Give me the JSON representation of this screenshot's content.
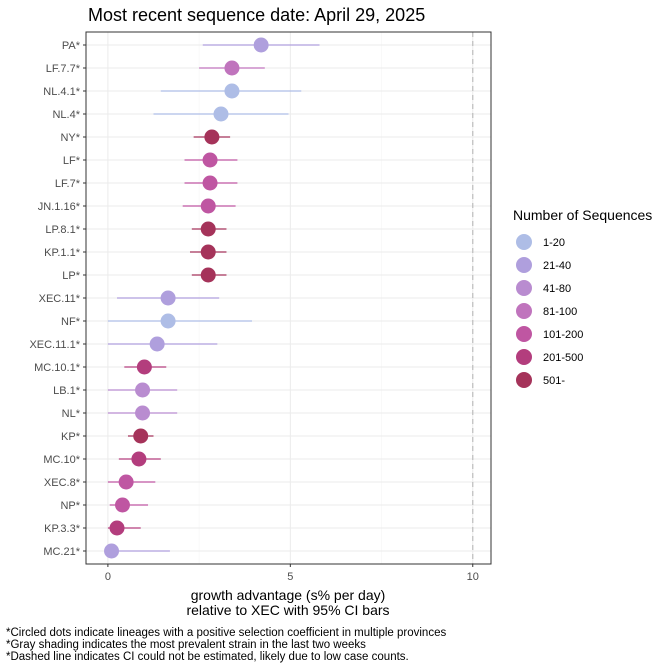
{
  "chart_data": {
    "type": "scatter",
    "title": "Most recent sequence date: April 29, 2025",
    "xlabel": [
      "growth advantage (s% per day)",
      "relative to  XEC  with 95% CI bars"
    ],
    "ylabel": "",
    "xlim": [
      -0.6,
      10.5
    ],
    "x_ticks": [
      0,
      5,
      10
    ],
    "x_tick_labels": [
      "0",
      "5",
      "10"
    ],
    "reference_line": {
      "x": 10,
      "style": "dashed",
      "color": "#bdbdbd"
    },
    "grid": true,
    "legend": {
      "title": "Number of Sequences",
      "placement": "right",
      "entries": [
        {
          "label": "1-20",
          "color": "#aebde6"
        },
        {
          "label": "21-40",
          "color": "#af9fdd"
        },
        {
          "label": "41-80",
          "color": "#b98cd0"
        },
        {
          "label": "81-100",
          "color": "#c074bd"
        },
        {
          "label": "101-200",
          "color": "#bf56a2"
        },
        {
          "label": "201-500",
          "color": "#b33d7d"
        },
        {
          "label": "501-",
          "color": "#a5335a"
        }
      ]
    },
    "points": [
      {
        "lineage": "PA*",
        "x": 4.2,
        "lo": 2.6,
        "hi": 5.8,
        "group": "21-40"
      },
      {
        "lineage": "LF.7.7*",
        "x": 3.4,
        "lo": 2.5,
        "hi": 4.3,
        "group": "81-100"
      },
      {
        "lineage": "NL.4.1*",
        "x": 3.4,
        "lo": 1.45,
        "hi": 5.3,
        "group": "1-20"
      },
      {
        "lineage": "NL.4*",
        "x": 3.1,
        "lo": 1.25,
        "hi": 4.95,
        "group": "1-20"
      },
      {
        "lineage": "NY*",
        "x": 2.85,
        "lo": 2.35,
        "hi": 3.35,
        "group": "501-"
      },
      {
        "lineage": "LF*",
        "x": 2.8,
        "lo": 2.1,
        "hi": 3.55,
        "group": "101-200"
      },
      {
        "lineage": "LF.7*",
        "x": 2.8,
        "lo": 2.1,
        "hi": 3.55,
        "group": "101-200"
      },
      {
        "lineage": "JN.1.16*",
        "x": 2.75,
        "lo": 2.05,
        "hi": 3.5,
        "group": "101-200"
      },
      {
        "lineage": "LP.8.1*",
        "x": 2.75,
        "lo": 2.3,
        "hi": 3.25,
        "group": "501-"
      },
      {
        "lineage": "KP.1.1*",
        "x": 2.75,
        "lo": 2.25,
        "hi": 3.25,
        "group": "501-"
      },
      {
        "lineage": "LP*",
        "x": 2.75,
        "lo": 2.3,
        "hi": 3.25,
        "group": "501-"
      },
      {
        "lineage": "XEC.11*",
        "x": 1.65,
        "lo": 0.25,
        "hi": 3.05,
        "group": "21-40"
      },
      {
        "lineage": "NF*",
        "x": 1.65,
        "lo": 0.0,
        "hi": 3.95,
        "group": "1-20"
      },
      {
        "lineage": "XEC.11.1*",
        "x": 1.35,
        "lo": 0.0,
        "hi": 3.0,
        "group": "21-40"
      },
      {
        "lineage": "MC.10.1*",
        "x": 1.0,
        "lo": 0.45,
        "hi": 1.6,
        "group": "201-500"
      },
      {
        "lineage": "LB.1*",
        "x": 0.95,
        "lo": 0.0,
        "hi": 1.9,
        "group": "41-80"
      },
      {
        "lineage": "NL*",
        "x": 0.95,
        "lo": 0.0,
        "hi": 1.9,
        "group": "41-80"
      },
      {
        "lineage": "KP*",
        "x": 0.9,
        "lo": 0.55,
        "hi": 1.25,
        "group": "501-"
      },
      {
        "lineage": "MC.10*",
        "x": 0.85,
        "lo": 0.3,
        "hi": 1.45,
        "group": "201-500"
      },
      {
        "lineage": "XEC.8*",
        "x": 0.5,
        "lo": 0.0,
        "hi": 1.3,
        "group": "101-200"
      },
      {
        "lineage": "NP*",
        "x": 0.4,
        "lo": 0.05,
        "hi": 1.1,
        "group": "101-200"
      },
      {
        "lineage": "KP.3.3*",
        "x": 0.25,
        "lo": 0.0,
        "hi": 0.9,
        "group": "201-500"
      },
      {
        "lineage": "MC.21*",
        "x": 0.1,
        "lo": 0.0,
        "hi": 1.7,
        "group": "21-40"
      }
    ]
  },
  "footnotes": [
    "*Circled dots indicate lineages with a positive selection coefficient in multiple provinces",
    "*Gray shading indicates the most prevalent strain in the last two weeks",
    "*Dashed line indicates CI could not be estimated, likely due to low case counts."
  ]
}
